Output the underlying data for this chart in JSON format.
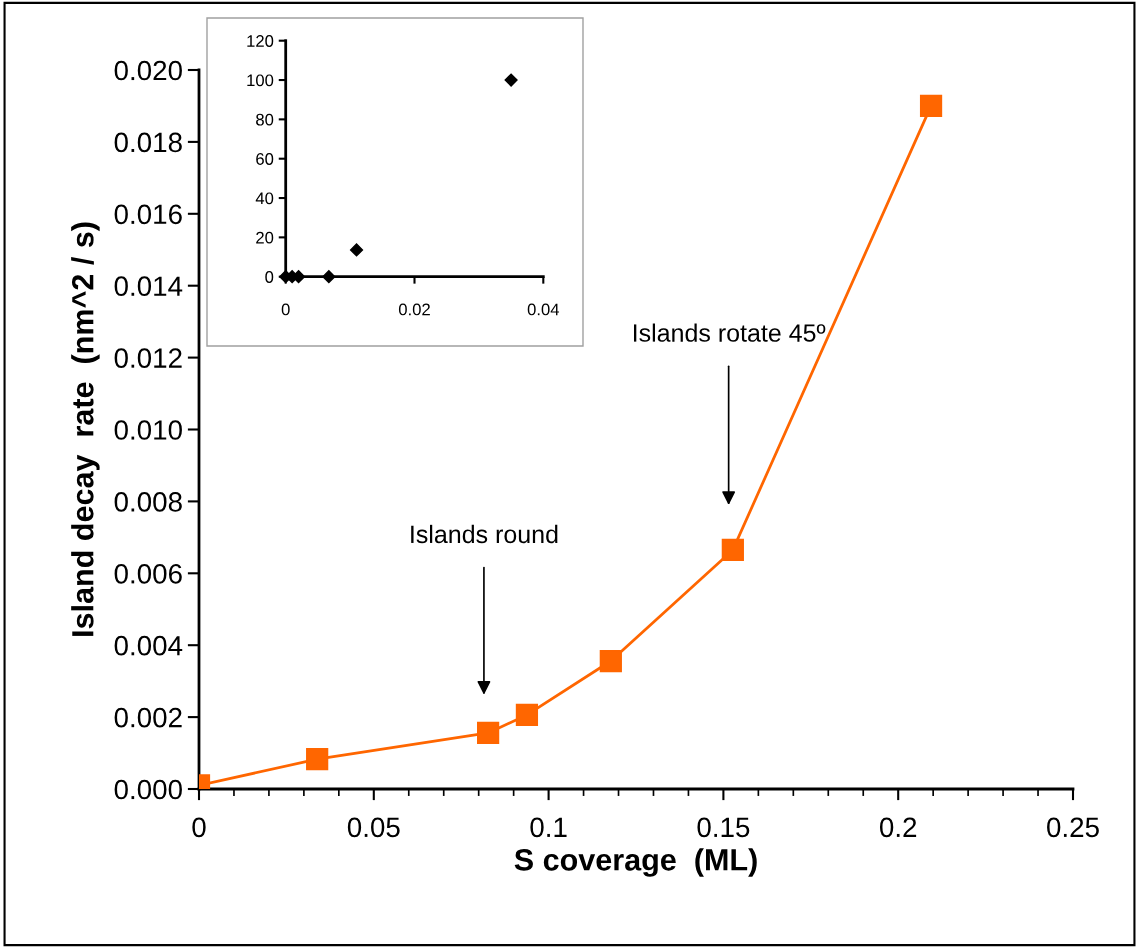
{
  "chart_data": [
    {
      "type": "line",
      "xlabel": "S coverage  (ML)",
      "ylabel": "Island decay  rate  (nm^2 / s)",
      "x": [
        0,
        0.0338,
        0.0827,
        0.0938,
        0.1178,
        0.1527,
        0.2094
      ],
      "series": [
        {
          "color": "#ff6600",
          "values": [
            0.0001,
            0.00083,
            0.00156,
            0.00206,
            0.00356,
            0.00665,
            0.019
          ]
        }
      ],
      "marker": "square",
      "line_style": "solid",
      "grid": false,
      "legend": false,
      "xlim": [
        0,
        0.25
      ],
      "xticks": [
        0,
        {
          "value": 0.01,
          "label": null
        },
        {
          "value": 0.02,
          "label": null
        },
        {
          "value": 0.03,
          "label": null
        },
        {
          "value": 0.04,
          "label": null
        },
        0.05,
        {
          "value": 0.06,
          "label": null
        },
        {
          "value": 0.07,
          "label": null
        },
        {
          "value": 0.08,
          "label": null
        },
        {
          "value": 0.09,
          "label": null
        },
        0.1,
        {
          "value": 0.11,
          "label": null
        },
        {
          "value": 0.12,
          "label": null
        },
        {
          "value": 0.13,
          "label": null
        },
        {
          "value": 0.14,
          "label": null
        },
        0.15,
        {
          "value": 0.16,
          "label": null
        },
        {
          "value": 0.17,
          "label": null
        },
        {
          "value": 0.18,
          "label": null
        },
        {
          "value": 0.19,
          "label": null
        },
        0.2,
        {
          "value": 0.21,
          "label": null
        },
        {
          "value": 0.22,
          "label": null
        },
        {
          "value": 0.23,
          "label": null
        },
        {
          "value": 0.24,
          "label": null
        },
        0.25
      ],
      "ylim": [
        0,
        0.02
      ],
      "yticks": [
        {
          "value": 0,
          "label": "0.000"
        },
        {
          "value": 0.002,
          "label": "0.002"
        },
        {
          "value": 0.004,
          "label": "0.004"
        },
        {
          "value": 0.006,
          "label": "0.006"
        },
        {
          "value": 0.008,
          "label": "0.008"
        },
        {
          "value": 0.01,
          "label": "0.010"
        },
        {
          "value": 0.012,
          "label": "0.012"
        },
        {
          "value": 0.014,
          "label": "0.014"
        },
        {
          "value": 0.016,
          "label": "0.016"
        },
        {
          "value": 0.018,
          "label": "0.018"
        },
        {
          "value": 0.02,
          "label": "0.020"
        }
      ],
      "annotations": [
        "Islands round",
        "Islands rotate 45º"
      ]
    },
    {
      "type": "scatter",
      "x": [
        0,
        0.001,
        0.002,
        0.0067,
        0.011,
        0.035
      ],
      "series": [
        {
          "color": "#000000",
          "values": [
            0,
            0,
            0,
            0,
            13.6,
            100
          ]
        }
      ],
      "marker": "diamond",
      "grid": false,
      "legend": false,
      "xlim": [
        0,
        0.04
      ],
      "xticks": [
        0,
        0.02,
        0.04
      ],
      "ylim": [
        0,
        120
      ],
      "yticks": [
        0,
        20,
        40,
        60,
        80,
        100,
        120
      ]
    }
  ]
}
